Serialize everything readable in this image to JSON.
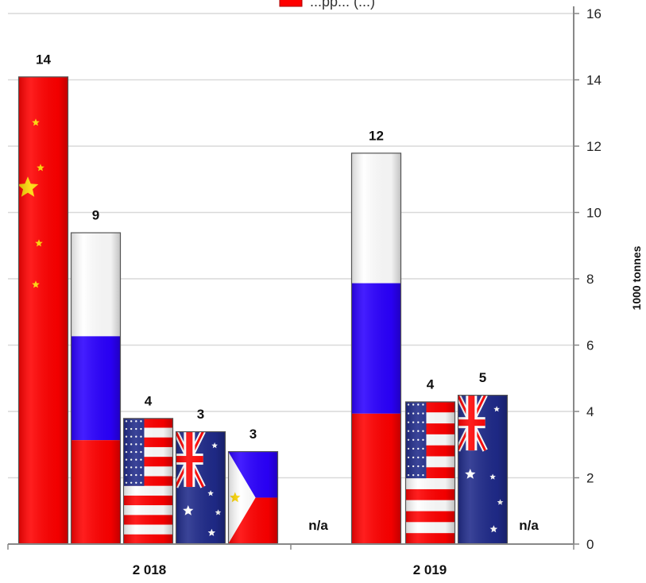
{
  "chart_data": {
    "type": "bar",
    "title": "",
    "legend_fragment": "...pp... (...)",
    "xlabel": "",
    "ylabel": "1000 tonnes",
    "y_axis_side": "right",
    "ylim": [
      0,
      16
    ],
    "yticks": [
      0,
      2,
      4,
      6,
      8,
      10,
      12,
      14,
      16
    ],
    "grid": true,
    "categories": [
      "2 018",
      "2 019"
    ],
    "bars": [
      {
        "group": "2 018",
        "flag": "china-flag",
        "value": 14.1,
        "label": "14"
      },
      {
        "group": "2 018",
        "flag": "russia-flag",
        "value": 9.4,
        "label": "9"
      },
      {
        "group": "2 018",
        "flag": "usa-flag",
        "value": 3.8,
        "label": "4"
      },
      {
        "group": "2 018",
        "flag": "australia-flag",
        "value": 3.4,
        "label": "3"
      },
      {
        "group": "2 018",
        "flag": "philippines-flag",
        "value": 2.8,
        "label": "3"
      },
      {
        "group": "2 019",
        "flag": "china-flag",
        "value": null,
        "label": "n/a"
      },
      {
        "group": "2 019",
        "flag": "russia-flag",
        "value": 11.8,
        "label": "12"
      },
      {
        "group": "2 019",
        "flag": "usa-flag",
        "value": 4.3,
        "label": "4"
      },
      {
        "group": "2 019",
        "flag": "australia-flag",
        "value": 4.5,
        "label": "5"
      },
      {
        "group": "2 019",
        "flag": "philippines-flag",
        "value": null,
        "label": "n/a"
      }
    ],
    "colors": {
      "red": "#ff0000",
      "blue": "#2b00ff",
      "white": "#ffffff",
      "navy": "#1f2a8a",
      "yellow": "#ffd700",
      "grid": "#d9d9d9",
      "axis": "#888888"
    }
  }
}
